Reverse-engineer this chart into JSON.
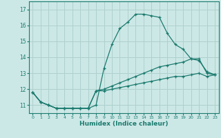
{
  "xlabel": "Humidex (Indice chaleur)",
  "ylabel": "",
  "bg_color": "#cce8e6",
  "grid_color": "#aed0ce",
  "line_color": "#1a7a6e",
  "xlim": [
    -0.5,
    23.5
  ],
  "ylim": [
    10.5,
    17.5
  ],
  "yticks": [
    11,
    12,
    13,
    14,
    15,
    16,
    17
  ],
  "xticks": [
    0,
    1,
    2,
    3,
    4,
    5,
    6,
    7,
    8,
    9,
    10,
    11,
    12,
    13,
    14,
    15,
    16,
    17,
    18,
    19,
    20,
    21,
    22,
    23
  ],
  "series": [
    [
      11.8,
      11.2,
      11.0,
      10.8,
      10.8,
      10.8,
      10.8,
      10.8,
      11.0,
      13.3,
      14.8,
      15.8,
      16.2,
      16.7,
      16.7,
      16.6,
      16.5,
      15.5,
      14.8,
      14.5,
      13.9,
      13.8,
      13.1,
      12.9
    ],
    [
      11.8,
      11.2,
      11.0,
      10.8,
      10.8,
      10.8,
      10.8,
      10.8,
      11.9,
      12.0,
      12.2,
      12.4,
      12.6,
      12.8,
      13.0,
      13.2,
      13.4,
      13.5,
      13.6,
      13.7,
      13.9,
      13.9,
      13.0,
      12.9
    ],
    [
      11.8,
      11.2,
      11.0,
      10.8,
      10.8,
      10.8,
      10.8,
      10.8,
      11.9,
      11.9,
      12.0,
      12.1,
      12.2,
      12.3,
      12.4,
      12.5,
      12.6,
      12.7,
      12.8,
      12.8,
      12.9,
      13.0,
      12.8,
      12.9
    ]
  ]
}
